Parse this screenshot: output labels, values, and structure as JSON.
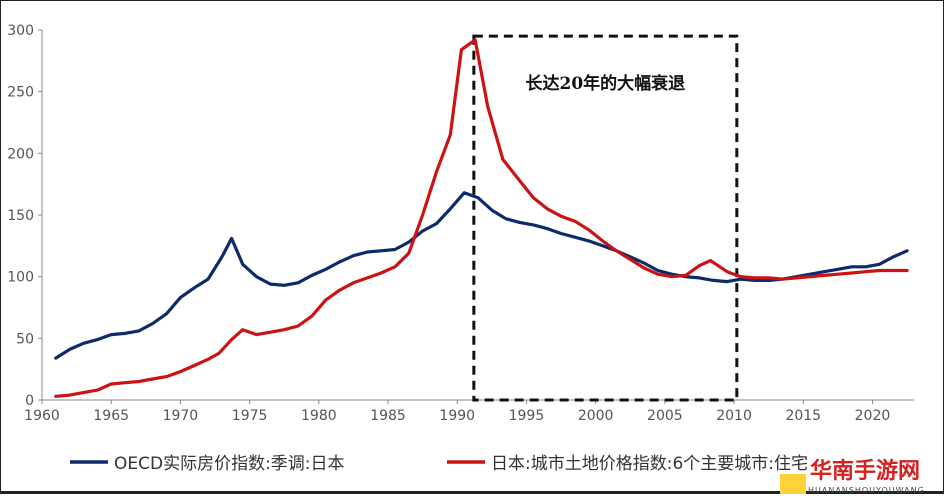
{
  "chart_data": {
    "type": "line",
    "title": "",
    "xlabel": "",
    "ylabel": "",
    "xlim": [
      1960,
      2023
    ],
    "ylim": [
      0,
      300
    ],
    "x_ticks": [
      1960,
      1965,
      1970,
      1975,
      1980,
      1985,
      1990,
      1995,
      2000,
      2005,
      2010,
      2015,
      2020
    ],
    "y_ticks": [
      0,
      50,
      100,
      150,
      200,
      250,
      300
    ],
    "grid": false,
    "legend_position": "bottom",
    "series": [
      {
        "name": "OECD实际房价指数:季调:日本",
        "color": "#0d2a6b",
        "points": [
          [
            1961,
            34
          ],
          [
            1962,
            41
          ],
          [
            1963,
            46
          ],
          [
            1964,
            49
          ],
          [
            1965,
            53
          ],
          [
            1966,
            54
          ],
          [
            1967,
            56
          ],
          [
            1968,
            62
          ],
          [
            1969,
            70
          ],
          [
            1970,
            83
          ],
          [
            1971,
            91
          ],
          [
            1972,
            98
          ],
          [
            1973,
            116
          ],
          [
            1973.7,
            131
          ],
          [
            1974.5,
            110
          ],
          [
            1975.5,
            100
          ],
          [
            1976.5,
            94
          ],
          [
            1977.5,
            93
          ],
          [
            1978.5,
            95
          ],
          [
            1979.5,
            101
          ],
          [
            1980.5,
            106
          ],
          [
            1981.5,
            112
          ],
          [
            1982.5,
            117
          ],
          [
            1983.5,
            120
          ],
          [
            1984.5,
            121
          ],
          [
            1985.5,
            122
          ],
          [
            1986.5,
            128
          ],
          [
            1987.5,
            137
          ],
          [
            1988.5,
            143
          ],
          [
            1989.5,
            155
          ],
          [
            1990.5,
            168
          ],
          [
            1991.5,
            164
          ],
          [
            1992.5,
            154
          ],
          [
            1993.5,
            147
          ],
          [
            1994.5,
            144
          ],
          [
            1995.5,
            142
          ],
          [
            1996.5,
            139
          ],
          [
            1997.5,
            135
          ],
          [
            1998.5,
            132
          ],
          [
            1999.5,
            129
          ],
          [
            2000.5,
            125
          ],
          [
            2001.5,
            121
          ],
          [
            2002.5,
            116
          ],
          [
            2003.5,
            111
          ],
          [
            2004.5,
            105
          ],
          [
            2005.5,
            102
          ],
          [
            2006.5,
            100
          ],
          [
            2007.5,
            99
          ],
          [
            2008.5,
            97
          ],
          [
            2009.5,
            96
          ],
          [
            2010.5,
            98
          ],
          [
            2011.5,
            97
          ],
          [
            2012.5,
            97
          ],
          [
            2013.5,
            98
          ],
          [
            2014.5,
            100
          ],
          [
            2015.5,
            102
          ],
          [
            2016.5,
            104
          ],
          [
            2017.5,
            106
          ],
          [
            2018.5,
            108
          ],
          [
            2019.5,
            108
          ],
          [
            2020.5,
            110
          ],
          [
            2021.5,
            116
          ],
          [
            2022.5,
            121
          ]
        ]
      },
      {
        "name": "日本:城市土地价格指数:6个主要城市:住宅",
        "color": "#cc1313",
        "points": [
          [
            1961,
            3
          ],
          [
            1962,
            4
          ],
          [
            1963,
            6
          ],
          [
            1964,
            8
          ],
          [
            1965,
            13
          ],
          [
            1966,
            14
          ],
          [
            1967,
            15
          ],
          [
            1968,
            17
          ],
          [
            1969,
            19
          ],
          [
            1970,
            23
          ],
          [
            1971,
            28
          ],
          [
            1972,
            33
          ],
          [
            1972.8,
            38
          ],
          [
            1973.7,
            49
          ],
          [
            1974.5,
            57
          ],
          [
            1975.5,
            53
          ],
          [
            1976.5,
            55
          ],
          [
            1977.5,
            57
          ],
          [
            1978.5,
            60
          ],
          [
            1979.5,
            68
          ],
          [
            1980.5,
            81
          ],
          [
            1981.5,
            89
          ],
          [
            1982.5,
            95
          ],
          [
            1983.5,
            99
          ],
          [
            1984.5,
            103
          ],
          [
            1985.5,
            108
          ],
          [
            1986.5,
            119
          ],
          [
            1987.5,
            150
          ],
          [
            1988.5,
            185
          ],
          [
            1989.5,
            215
          ],
          [
            1990.3,
            284
          ],
          [
            1991.3,
            292
          ],
          [
            1992.2,
            238
          ],
          [
            1993.3,
            195
          ],
          [
            1994.5,
            178
          ],
          [
            1995.5,
            164
          ],
          [
            1996.5,
            155
          ],
          [
            1997.5,
            149
          ],
          [
            1998.5,
            145
          ],
          [
            1999.5,
            138
          ],
          [
            2000.5,
            129
          ],
          [
            2001.5,
            121
          ],
          [
            2002.5,
            114
          ],
          [
            2003.5,
            107
          ],
          [
            2004.5,
            102
          ],
          [
            2005.5,
            100
          ],
          [
            2006.5,
            101
          ],
          [
            2007.5,
            109
          ],
          [
            2008.3,
            113
          ],
          [
            2009.5,
            104
          ],
          [
            2010.5,
            100
          ],
          [
            2011.5,
            99
          ],
          [
            2012.5,
            99
          ],
          [
            2013.5,
            98
          ],
          [
            2014.5,
            99
          ],
          [
            2015.5,
            100
          ],
          [
            2016.5,
            101
          ],
          [
            2017.5,
            102
          ],
          [
            2018.5,
            103
          ],
          [
            2019.5,
            104
          ],
          [
            2020.5,
            105
          ],
          [
            2021.5,
            105
          ],
          [
            2022.5,
            105
          ]
        ]
      }
    ],
    "annotations": [
      {
        "text": "长达20年的大幅衰退",
        "box_x_range": [
          1991.2,
          2010.2
        ],
        "box_y_range": [
          0,
          295
        ]
      }
    ]
  },
  "watermark": {
    "name": "华南手游网",
    "subtitle": "HUANANSHOUYOUWANG"
  }
}
